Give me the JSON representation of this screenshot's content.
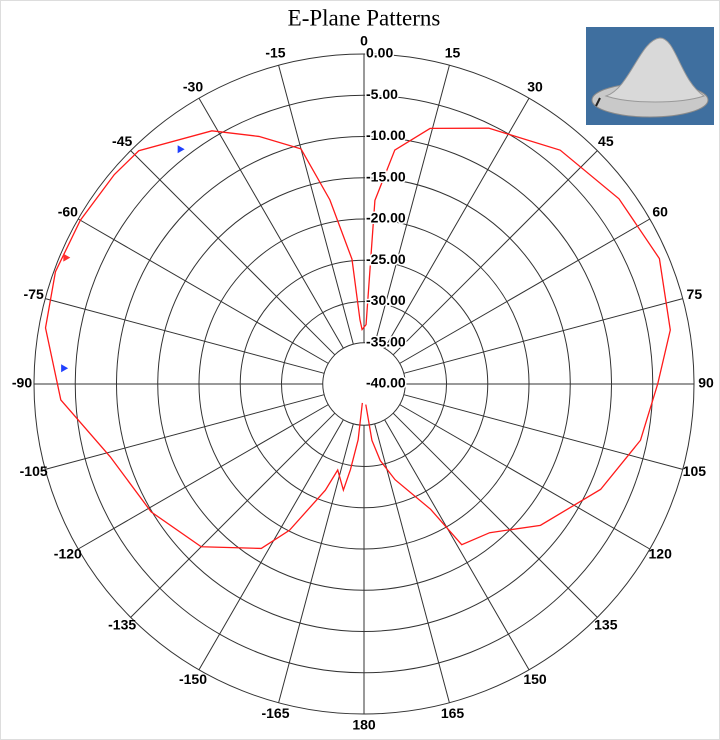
{
  "chart_data": {
    "type": "polar",
    "title": "E-Plane Patterns",
    "xlim": [
      -180,
      180
    ],
    "xticks": [
      -165,
      -150,
      -135,
      -120,
      -105,
      -90,
      -75,
      -60,
      -45,
      -30,
      -15,
      0,
      15,
      30,
      45,
      60,
      75,
      90,
      105,
      120,
      135,
      150,
      165,
      180
    ],
    "ylim": [
      -40,
      0
    ],
    "yticks": [
      {
        "value": 0,
        "label": "0.00"
      },
      {
        "value": -5,
        "label": "-5.00"
      },
      {
        "value": -10,
        "label": "-10.00"
      },
      {
        "value": -15,
        "label": "-15.00"
      },
      {
        "value": -20,
        "label": "-20.00"
      },
      {
        "value": -25,
        "label": "-25.00"
      },
      {
        "value": -30,
        "label": "-30.00"
      },
      {
        "value": -35,
        "label": "-35.00"
      },
      {
        "value": -40,
        "label": "-40.00"
      }
    ],
    "grid": true,
    "color": "#ff1a1a",
    "x": [
      -175,
      -174,
      -171,
      -169,
      -163,
      -160,
      -153,
      -148,
      -135,
      -121,
      -106,
      -93,
      -80,
      -70,
      -60,
      -50,
      -44,
      -31,
      -23,
      -15,
      -10.5,
      -5.5,
      -3.6,
      -2,
      2,
      3.4,
      7.5,
      14.5,
      26,
      40,
      54,
      67,
      80,
      90,
      101.5,
      114,
      128.7,
      139.8,
      148.7,
      152,
      162,
      168,
      172,
      175
    ],
    "values": [
      -37.7,
      -33.2,
      -29.5,
      -26.9,
      -29.1,
      -26.3,
      -20.1,
      -16.5,
      -12.1,
      -9.9,
      -8.0,
      -3.2,
      -0.8,
      -0.2,
      -0.3,
      -0.5,
      -0.7,
      -4.2,
      -7.4,
      -10.5,
      -17.3,
      -24.8,
      -32.2,
      -33.4,
      -32.8,
      -17.7,
      -11.4,
      -8.0,
      -5.5,
      -3.0,
      -1.8,
      -1.1,
      -2.3,
      -4.4,
      -5.8,
      -8.6,
      -12.6,
      -16.4,
      -17.2,
      -22.8,
      -27.8,
      -30.5,
      -33.1,
      -37.5
    ],
    "markers": [
      {
        "x": -38,
        "value": -3.9,
        "color": "#2040ff"
      },
      {
        "x": -67,
        "value": -0.8,
        "color": "#ff3030"
      },
      {
        "x": -87,
        "value": -3.6,
        "color": "#2040ff"
      }
    ]
  }
}
